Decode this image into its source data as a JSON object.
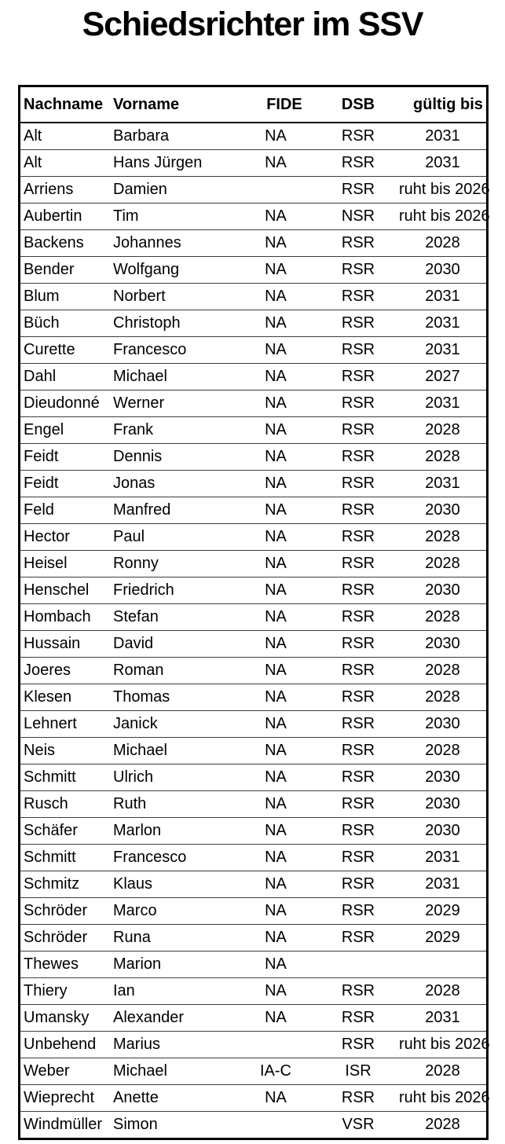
{
  "title": "Schiedsrichter im SSV",
  "table": {
    "columns": [
      {
        "key": "nachname",
        "label": "Nachname",
        "align": "left"
      },
      {
        "key": "vorname",
        "label": "Vorname",
        "align": "left"
      },
      {
        "key": "fide",
        "label": "FIDE",
        "align": "center"
      },
      {
        "key": "dsb",
        "label": "DSB",
        "align": "center"
      },
      {
        "key": "gueltig_bis",
        "label": "gültig bis",
        "align": "center"
      }
    ],
    "rows": [
      [
        "Alt",
        "Barbara",
        "NA",
        "RSR",
        "2031"
      ],
      [
        "Alt",
        "Hans Jürgen",
        "NA",
        "RSR",
        "2031"
      ],
      [
        "Arriens",
        "Damien",
        "",
        "RSR",
        "ruht bis 2026"
      ],
      [
        "Aubertin",
        "Tim",
        "NA",
        "NSR",
        "ruht bis 2026"
      ],
      [
        "Backens",
        "Johannes",
        "NA",
        "RSR",
        "2028"
      ],
      [
        "Bender",
        "Wolfgang",
        "NA",
        "RSR",
        "2030"
      ],
      [
        "Blum",
        "Norbert",
        "NA",
        "RSR",
        "2031"
      ],
      [
        "Büch",
        "Christoph",
        "NA",
        "RSR",
        "2031"
      ],
      [
        "Curette",
        "Francesco",
        "NA",
        "RSR",
        "2031"
      ],
      [
        "Dahl",
        "Michael",
        "NA",
        "RSR",
        "2027"
      ],
      [
        "Dieudonné",
        "Werner",
        "NA",
        "RSR",
        "2031"
      ],
      [
        "Engel",
        "Frank",
        "NA",
        "RSR",
        "2028"
      ],
      [
        "Feidt",
        "Dennis",
        "NA",
        "RSR",
        "2028"
      ],
      [
        "Feidt",
        "Jonas",
        "NA",
        "RSR",
        "2031"
      ],
      [
        "Feld",
        "Manfred",
        "NA",
        "RSR",
        "2030"
      ],
      [
        "Hector",
        "Paul",
        "NA",
        "RSR",
        "2028"
      ],
      [
        "Heisel",
        "Ronny",
        "NA",
        "RSR",
        "2028"
      ],
      [
        "Henschel",
        "Friedrich",
        "NA",
        "RSR",
        "2030"
      ],
      [
        "Hombach",
        "Stefan",
        "NA",
        "RSR",
        "2028"
      ],
      [
        "Hussain",
        "David",
        "NA",
        "RSR",
        "2030"
      ],
      [
        "Joeres",
        "Roman",
        "NA",
        "RSR",
        "2028"
      ],
      [
        "Klesen",
        "Thomas",
        "NA",
        "RSR",
        "2028"
      ],
      [
        "Lehnert",
        "Janick",
        "NA",
        "RSR",
        "2030"
      ],
      [
        "Neis",
        "Michael",
        "NA",
        "RSR",
        "2028"
      ],
      [
        "Schmitt",
        "Ulrich",
        "NA",
        "RSR",
        "2030"
      ],
      [
        "Rusch",
        "Ruth",
        "NA",
        "RSR",
        "2030"
      ],
      [
        "Schäfer",
        "Marlon",
        "NA",
        "RSR",
        "2030"
      ],
      [
        "Schmitt",
        "Francesco",
        "NA",
        "RSR",
        "2031"
      ],
      [
        "Schmitz",
        "Klaus",
        "NA",
        "RSR",
        "2031"
      ],
      [
        "Schröder",
        "Marco",
        "NA",
        "RSR",
        "2029"
      ],
      [
        "Schröder",
        "Runa",
        "NA",
        "RSR",
        "2029"
      ],
      [
        "Thewes",
        "Marion",
        "NA",
        "",
        ""
      ],
      [
        "Thiery",
        "Ian",
        "NA",
        "RSR",
        "2028"
      ],
      [
        "Umansky",
        "Alexander",
        "NA",
        "RSR",
        "2031"
      ],
      [
        "Unbehend",
        "Marius",
        "",
        "RSR",
        "ruht bis 2026"
      ],
      [
        "Weber",
        "Michael",
        "IA-C",
        "ISR",
        "2028"
      ],
      [
        "Wieprecht",
        "Anette",
        "NA",
        "RSR",
        "ruht bis 2026"
      ],
      [
        "Windmüller",
        "Simon",
        "",
        "VSR",
        "2028"
      ]
    ]
  }
}
